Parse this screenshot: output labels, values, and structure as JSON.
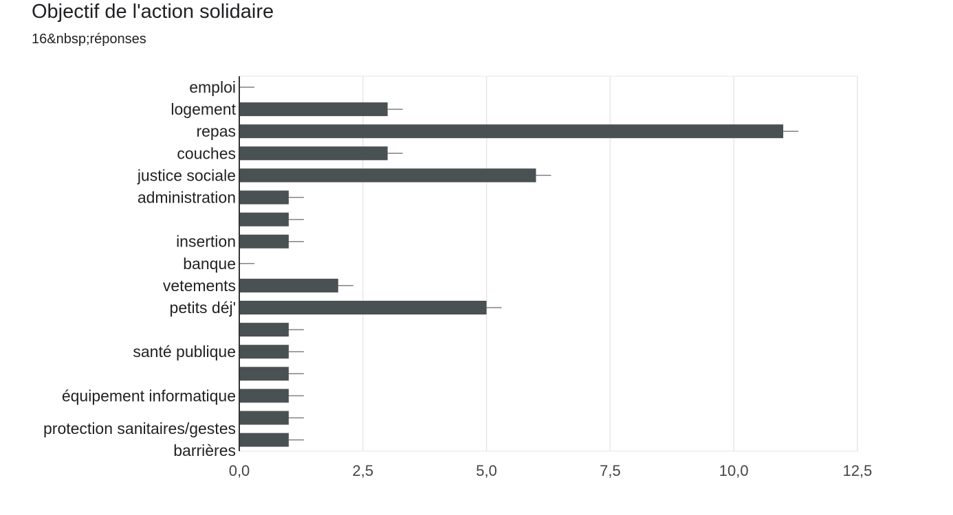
{
  "header": {
    "title": "Objectif de l'action solidaire",
    "subtitle": "16&nbsp;réponses"
  },
  "chart_data": {
    "type": "bar",
    "orientation": "horizontal",
    "title": "Objectif de l'action solidaire",
    "categories": [
      "emploi",
      "logement",
      "repas",
      "couches",
      "justice sociale",
      "administration",
      "",
      "insertion",
      "banque",
      "vetements",
      "petits déj'",
      "",
      "santé publique",
      "",
      "équipement informatique",
      "",
      ""
    ],
    "extra_labels": [
      "protection sanitaires/gestes",
      "barrières"
    ],
    "values": [
      0,
      3,
      11,
      3,
      6,
      1,
      1,
      1,
      0,
      2,
      5,
      1,
      1,
      1,
      1,
      1,
      1
    ],
    "xlim": [
      0,
      12.5
    ],
    "ticks": [
      "0,0",
      "2,5",
      "5,0",
      "7,5",
      "10,0",
      "12,5"
    ],
    "tick_values": [
      0,
      2.5,
      5,
      7.5,
      10,
      12.5
    ],
    "grid": true,
    "colors": {
      "bar": "#4a5153",
      "grid": "#e6e6e6",
      "whisker": "#808080",
      "axis": "#333333"
    }
  }
}
